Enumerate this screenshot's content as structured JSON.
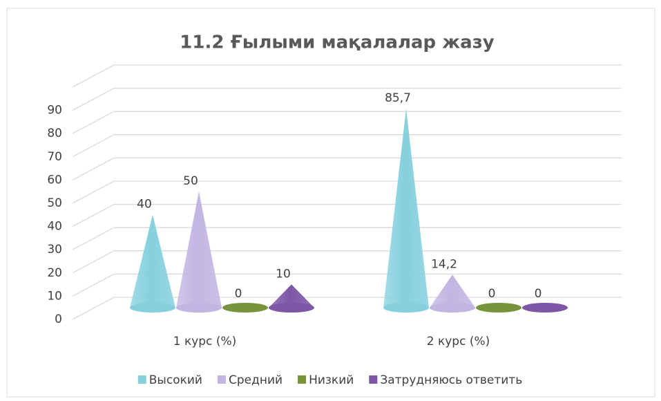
{
  "chart_data": {
    "type": "cone3d",
    "title": "11.2 Ғылыми мақалалар жазу",
    "categories": [
      "1 курс (%)",
      "2 курс (%)"
    ],
    "series": [
      {
        "name": "Высокий",
        "color": "#86d0de",
        "values": [
          40,
          85.7
        ],
        "value_labels": [
          "40",
          "85,7"
        ]
      },
      {
        "name": "Средний",
        "color": "#c3b5e2",
        "values": [
          50,
          14.2
        ],
        "value_labels": [
          "50",
          "14,2"
        ]
      },
      {
        "name": "Низкий",
        "color": "#77933c",
        "values": [
          0,
          0
        ],
        "value_labels": [
          "0",
          "0"
        ]
      },
      {
        "name": "Затрудняюсь ответить",
        "color": "#7d56a6",
        "values": [
          10,
          0
        ],
        "value_labels": [
          "10",
          "0"
        ]
      }
    ],
    "ylim": [
      0,
      100
    ],
    "yticks": [
      0,
      10,
      20,
      30,
      40,
      50,
      60,
      70,
      80,
      90
    ],
    "grid": true,
    "legend": "bottom"
  }
}
